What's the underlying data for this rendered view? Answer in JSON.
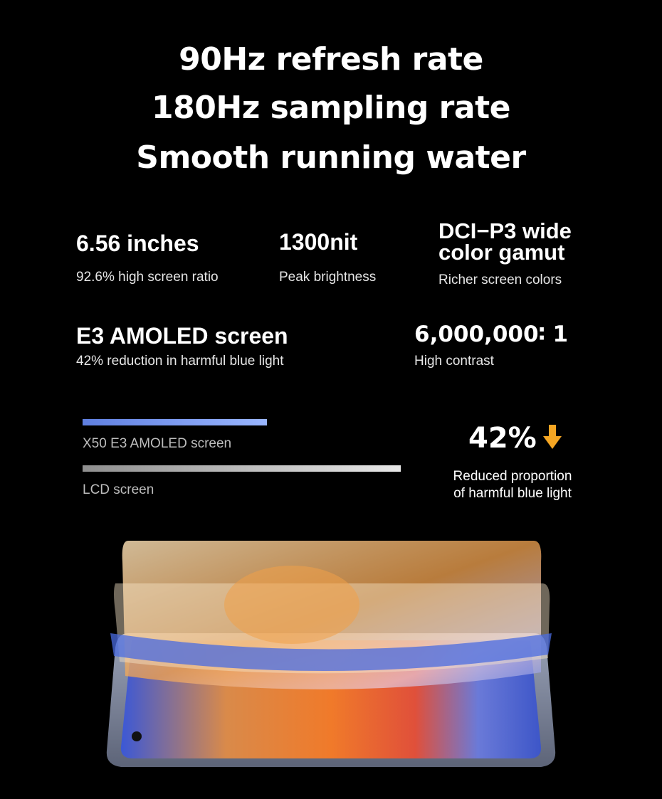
{
  "headlines": [
    "90Hz refresh rate",
    "180Hz sampling rate",
    "Smooth running water"
  ],
  "specs": [
    {
      "title": "6.56 inches",
      "sub": "92.6% high screen ratio"
    },
    {
      "title": "1300nit",
      "sub": "Peak brightness"
    },
    {
      "title_line1": "DCI−P3 wide",
      "title_line2": "color gamut",
      "sub": "Richer screen colors"
    },
    {
      "title": "E3 AMOLED screen",
      "sub": "42% reduction in harmful blue light"
    },
    {
      "title": "6,000,000∶ 1",
      "sub": "High contrast"
    }
  ],
  "comparison": {
    "amoled": {
      "label": "X50 E3 AMOLED screen",
      "relative_value": 0.58,
      "color": "#7fa0ff"
    },
    "lcd": {
      "label": "LCD screen",
      "relative_value": 1.0,
      "color": "#d9d9d9"
    },
    "percent": "42%",
    "arrow_color": "#f5a623",
    "arrow_icon": "down-arrow-icon",
    "caption_line1": "Reduced proportion",
    "caption_line2": "of harmful blue light"
  }
}
